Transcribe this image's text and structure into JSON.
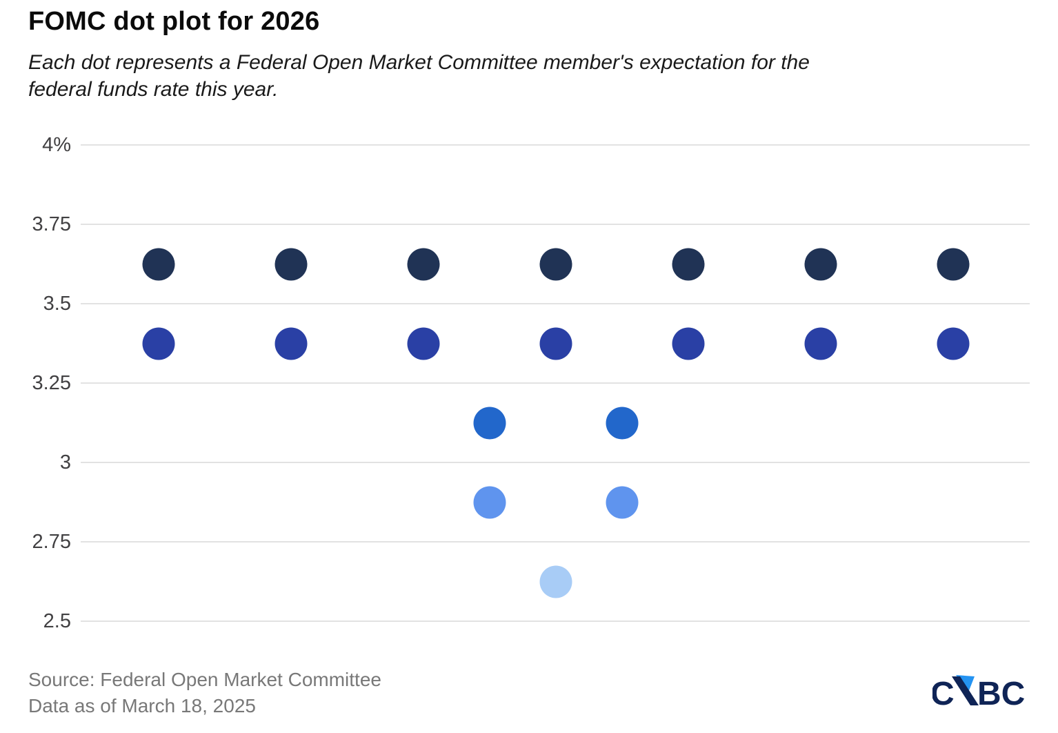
{
  "meta": {
    "background": "#ffffff",
    "brand": "CNBC"
  },
  "header": {
    "title": "FOMC dot plot for 2026",
    "subtitle_lines": [
      "Each dot represents a Federal Open Market Committee member's expectation for the",
      "federal funds rate this year."
    ]
  },
  "footer": {
    "source": "Source: Federal Open Market Committee",
    "data_as_of": "Data as of March 18, 2025"
  },
  "logo": {
    "name": "CNBC",
    "part1": "C",
    "part2": "BC",
    "letter_color": "#0f2456",
    "triangle_color": "#2493f2"
  },
  "chart_data": {
    "type": "scatter",
    "variant": "dot_plot",
    "title": "FOMC dot plot for 2026",
    "subtitle": "Each dot represents a Federal Open Market Committee member's expectation for the federal funds rate this year.",
    "xlabel": "",
    "ylabel": "",
    "ylim": [
      2.5,
      4
    ],
    "grid": true,
    "legend": false,
    "gridline_color": "#e2e2e2",
    "yticks": [
      {
        "value": 4.0,
        "label": "4%"
      },
      {
        "value": 3.75,
        "label": "3.75"
      },
      {
        "value": 3.5,
        "label": "3.5"
      },
      {
        "value": 3.25,
        "label": "3.25"
      },
      {
        "value": 3.0,
        "label": "3"
      },
      {
        "value": 2.75,
        "label": "2.75"
      },
      {
        "value": 2.5,
        "label": "2.5"
      }
    ],
    "rows": [
      {
        "rate": 3.625,
        "members": 7,
        "color": "#203355"
      },
      {
        "rate": 3.375,
        "members": 7,
        "color": "#2a40a5"
      },
      {
        "rate": 3.125,
        "members": 2,
        "color": "#2267cb"
      },
      {
        "rate": 2.875,
        "members": 2,
        "color": "#5f94ee"
      },
      {
        "rate": 2.625,
        "members": 1,
        "color": "#a8ccf6"
      }
    ],
    "total_dots": 19
  }
}
